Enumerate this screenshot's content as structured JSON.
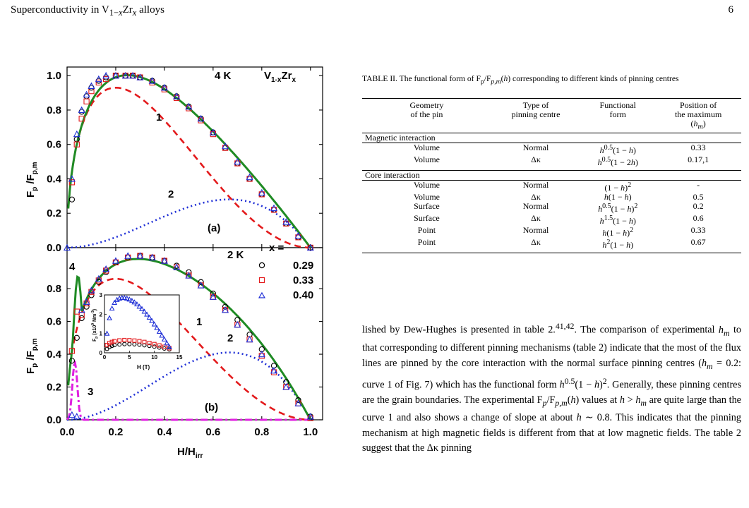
{
  "header": {
    "title": "Superconductivity in V1−xZrx alloys",
    "page_number": "6"
  },
  "chart_data": [
    {
      "type": "line",
      "panel": "(a)",
      "temperature_label": "4 K",
      "compound_label": "V1-xZrx",
      "ylabel": "Fp/Fp,m",
      "xlim": [
        0,
        1.05
      ],
      "ylim": [
        0,
        1.05
      ],
      "xticks": [
        0.0,
        0.2,
        0.4,
        0.6,
        0.8,
        1.0
      ],
      "yticks": [
        "0.0",
        "0.2",
        "0.4",
        "0.6",
        "0.8",
        "1.0"
      ],
      "curve_labels": [
        "1",
        "2"
      ],
      "series": [
        {
          "x": [
            0.02,
            0.04,
            0.06,
            0.08,
            0.1,
            0.13,
            0.16,
            0.2,
            0.24,
            0.27,
            0.3,
            0.35,
            0.4,
            0.45,
            0.5,
            0.55,
            0.6,
            0.65,
            0.7,
            0.75,
            0.8,
            0.85,
            0.9,
            0.95,
            1.0
          ],
          "y": [
            0.28,
            0.63,
            0.79,
            0.88,
            0.93,
            0.97,
            0.99,
            1.0,
            1.0,
            1.0,
            0.99,
            0.97,
            0.93,
            0.88,
            0.82,
            0.75,
            0.67,
            0.58,
            0.49,
            0.4,
            0.31,
            0.22,
            0.14,
            0.06,
            0.0
          ]
        },
        {
          "x": [
            0.02,
            0.04,
            0.06,
            0.08,
            0.1,
            0.13,
            0.16,
            0.2,
            0.24,
            0.27,
            0.3,
            0.35,
            0.4,
            0.45,
            0.5,
            0.55,
            0.6,
            0.65,
            0.7,
            0.75,
            0.8,
            0.85,
            0.9,
            0.95,
            1.0
          ],
          "y": [
            0.38,
            0.6,
            0.75,
            0.85,
            0.91,
            0.96,
            0.98,
            1.0,
            1.0,
            1.0,
            0.99,
            0.96,
            0.92,
            0.87,
            0.81,
            0.74,
            0.66,
            0.58,
            0.49,
            0.4,
            0.31,
            0.22,
            0.14,
            0.06,
            0.0
          ]
        },
        {
          "x": [
            0.0,
            0.02,
            0.04,
            0.06,
            0.08,
            0.1,
            0.13,
            0.16,
            0.2,
            0.24,
            0.27,
            0.3,
            0.35,
            0.4,
            0.45,
            0.5,
            0.55,
            0.6,
            0.65,
            0.7,
            0.75,
            0.8,
            0.85,
            0.9,
            0.95,
            1.0
          ],
          "y": [
            0.0,
            0.4,
            0.66,
            0.8,
            0.89,
            0.94,
            0.98,
            1.0,
            1.0,
            1.0,
            1.0,
            0.99,
            0.97,
            0.93,
            0.88,
            0.82,
            0.75,
            0.67,
            0.59,
            0.5,
            0.41,
            0.32,
            0.23,
            0.15,
            0.07,
            0.0
          ]
        }
      ]
    },
    {
      "type": "line",
      "panel": "(b)",
      "temperature_label": "2 K",
      "ylabel": "Fp/Fp,m",
      "xlabel": "H/Hirr",
      "xlim": [
        0,
        1.05
      ],
      "ylim": [
        0,
        1.05
      ],
      "xticks": [
        "0.0",
        "0.2",
        "0.4",
        "0.6",
        "0.8",
        "1.0"
      ],
      "yticks": [
        "0.0",
        "0.2",
        "0.4",
        "0.6",
        "0.8"
      ],
      "curve_labels": [
        "1",
        "2",
        "3",
        "4"
      ],
      "legend": {
        "title": "x =",
        "entries": [
          "0.29",
          "0.33",
          "0.40"
        ],
        "position": "top-right"
      },
      "series": [
        {
          "name": "0.29",
          "x": [
            0.02,
            0.04,
            0.06,
            0.08,
            0.1,
            0.13,
            0.16,
            0.2,
            0.25,
            0.3,
            0.35,
            0.4,
            0.45,
            0.5,
            0.55,
            0.6,
            0.65,
            0.7,
            0.75,
            0.8,
            0.85,
            0.9,
            0.95,
            1.0
          ],
          "y": [
            0.36,
            0.5,
            0.62,
            0.69,
            0.76,
            0.84,
            0.9,
            0.96,
            0.99,
            1.0,
            0.99,
            0.97,
            0.94,
            0.9,
            0.84,
            0.77,
            0.69,
            0.61,
            0.52,
            0.43,
            0.33,
            0.23,
            0.12,
            0.02
          ]
        },
        {
          "name": "0.33",
          "x": [
            0.02,
            0.04,
            0.06,
            0.08,
            0.1,
            0.13,
            0.16,
            0.2,
            0.25,
            0.3,
            0.35,
            0.4,
            0.45,
            0.5,
            0.55,
            0.6,
            0.65,
            0.7,
            0.75,
            0.8,
            0.85,
            0.9,
            0.95,
            1.0
          ],
          "y": [
            0.42,
            0.66,
            0.64,
            0.71,
            0.78,
            0.85,
            0.91,
            0.96,
            0.99,
            1.0,
            0.99,
            0.97,
            0.93,
            0.88,
            0.82,
            0.75,
            0.67,
            0.58,
            0.49,
            0.39,
            0.29,
            0.2,
            0.1,
            0.01
          ]
        },
        {
          "name": "0.40",
          "x": [
            0.02,
            0.04,
            0.06,
            0.08,
            0.1,
            0.13,
            0.16,
            0.2,
            0.25,
            0.3,
            0.35,
            0.4,
            0.45,
            0.5,
            0.55,
            0.6,
            0.65,
            0.7,
            0.75,
            0.8,
            0.85,
            0.9,
            0.95,
            1.0
          ],
          "y": [
            0.03,
            0.02,
            0.67,
            0.72,
            0.79,
            0.86,
            0.92,
            0.97,
            1.0,
            1.0,
            0.99,
            0.97,
            0.93,
            0.88,
            0.82,
            0.75,
            0.67,
            0.58,
            0.49,
            0.4,
            0.3,
            0.2,
            0.1,
            0.02
          ]
        }
      ]
    },
    {
      "type": "scatter",
      "panel": "(b) inset",
      "ylabel": "Fp (x10^9 Nm^-3)",
      "xlabel": "H (T)",
      "xlim": [
        0,
        15
      ],
      "ylim": [
        0,
        3
      ],
      "xticks": [
        "0",
        "5",
        "10",
        "15"
      ],
      "yticks": [
        "0",
        "1",
        "2",
        "3"
      ],
      "series": [
        {
          "name": "0.29",
          "x": [
            0.5,
            1,
            1.5,
            2,
            3,
            4,
            5,
            6,
            7,
            8,
            9,
            10,
            11,
            12,
            13
          ],
          "y": [
            0.2,
            0.3,
            0.36,
            0.4,
            0.43,
            0.45,
            0.45,
            0.44,
            0.42,
            0.39,
            0.36,
            0.32,
            0.27,
            0.22,
            0.17
          ]
        },
        {
          "name": "0.33",
          "x": [
            0.5,
            1,
            1.5,
            2,
            3,
            4,
            5,
            6,
            7,
            8,
            9,
            10,
            11,
            12,
            13
          ],
          "y": [
            0.4,
            0.5,
            0.56,
            0.6,
            0.64,
            0.66,
            0.65,
            0.63,
            0.6,
            0.56,
            0.51,
            0.45,
            0.38,
            0.31,
            0.24
          ]
        },
        {
          "name": "0.40",
          "x": [
            0.5,
            1,
            1.5,
            2,
            2.5,
            3,
            3.5,
            4,
            4.5,
            5,
            5.5,
            6,
            6.5,
            7,
            7.5,
            8,
            8.5,
            9,
            9.5,
            10,
            10.5,
            11,
            11.5,
            12,
            12.5,
            13
          ],
          "y": [
            1.0,
            1.8,
            2.3,
            2.6,
            2.75,
            2.82,
            2.85,
            2.85,
            2.82,
            2.77,
            2.7,
            2.62,
            2.52,
            2.4,
            2.28,
            2.14,
            1.99,
            1.83,
            1.66,
            1.48,
            1.29,
            1.1,
            0.9,
            0.7,
            0.5,
            0.3
          ]
        }
      ]
    }
  ],
  "table": {
    "caption": "TABLE II. The functional form of Fp/Fp,m(h) corresponding to different kinds of pinning centres",
    "headers": [
      [
        "Geometry",
        "of the pin"
      ],
      [
        "Type of",
        "pinning centre"
      ],
      [
        "Functional",
        "form"
      ],
      [
        "Position of",
        "the maximum",
        "(hm)"
      ]
    ],
    "sections": [
      {
        "title": "Magnetic interaction",
        "rows": [
          [
            "Volume",
            "Normal",
            "h^0.5(1 − h)",
            "0.33"
          ],
          [
            "Volume",
            "Δκ",
            "h^0.5(1 − 2h)",
            "0.17,1"
          ]
        ]
      },
      {
        "title": "Core interaction",
        "rows": [
          [
            "Volume",
            "Normal",
            "(1 − h)^2",
            "-"
          ],
          [
            "Volume",
            "Δκ",
            "h(1 − h)",
            "0.5"
          ],
          [
            "Surface",
            "Normal",
            "h^0.5(1 − h)^2",
            "0.2"
          ],
          [
            "Surface",
            "Δκ",
            "h^1.5(1 − h)",
            "0.6"
          ],
          [
            "Point",
            "Normal",
            "h(1 − h)^2",
            "0.33"
          ],
          [
            "Point",
            "Δκ",
            "h^2(1 − h)",
            "0.67"
          ]
        ]
      }
    ]
  },
  "body_text": "lished by Dew-Hughes is presented in table 2.41,42. The comparison of experimental hm to that corresponding to different pinning mechanisms (table 2) indicate that the most of the flux lines are pinned by the core interaction with the normal surface pinning centres (hm = 0.2: curve 1 of Fig. 7) which has the functional form h^0.5(1 − h)^2. Generally, these pinning centres are the grain boundaries. The experimental Fp/Fp,m(h) values at h > hm are quite large than the curve 1 and also shows a change of slope at about h ∼ 0.8. This indicates that the pinning mechanism at high magnetic fields is different from that at low magnetic fields. The table 2 suggest that the Δκ pinning"
}
